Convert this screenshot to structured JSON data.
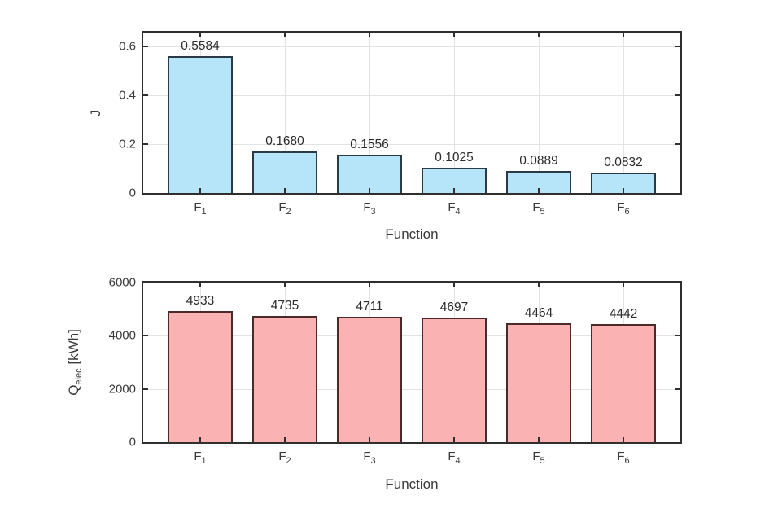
{
  "figure": {
    "background": "#ffffff"
  },
  "colors": {
    "grid": "#e3e3e3",
    "spine": "#2f2f2f",
    "tick_text": "#3a3a3a",
    "value_text": "#2b2b2b"
  },
  "chart_data": [
    {
      "type": "bar",
      "categories": [
        "F1",
        "F2",
        "F3",
        "F4",
        "F5",
        "F6"
      ],
      "values": [
        0.5584,
        0.168,
        0.1556,
        0.1025,
        0.0889,
        0.0832
      ],
      "value_labels": [
        "0.5584",
        "0.1680",
        "0.1556",
        "0.1025",
        "0.0889",
        "0.0832"
      ],
      "xlabel": "Function",
      "ylabel": {
        "pre": "J",
        "sub": "",
        "post": ""
      },
      "ylim": [
        0,
        0.655
      ],
      "yticks": [
        0,
        0.2,
        0.4,
        0.6
      ],
      "ytick_labels": [
        "0",
        "0.2",
        "0.4",
        "0.6"
      ],
      "grid": true,
      "legend_position": "none",
      "bar_fill": "#b6e4f9",
      "bar_edge": "#2b3a47"
    },
    {
      "type": "bar",
      "categories": [
        "F1",
        "F2",
        "F3",
        "F4",
        "F5",
        "F6"
      ],
      "values": [
        4933,
        4735,
        4711,
        4697,
        4464,
        4442
      ],
      "value_labels": [
        "4933",
        "4735",
        "4711",
        "4697",
        "4464",
        "4442"
      ],
      "xlabel": "Function",
      "ylabel": {
        "pre": "Q",
        "sub": "elec",
        "post": " [kWh]"
      },
      "ylim": [
        0,
        6000
      ],
      "yticks": [
        0,
        2000,
        4000,
        6000
      ],
      "ytick_labels": [
        "0",
        "2000",
        "4000",
        "6000"
      ],
      "grid": true,
      "legend_position": "none",
      "bar_fill": "#fbb2b2",
      "bar_edge": "#4a2a2a"
    }
  ]
}
